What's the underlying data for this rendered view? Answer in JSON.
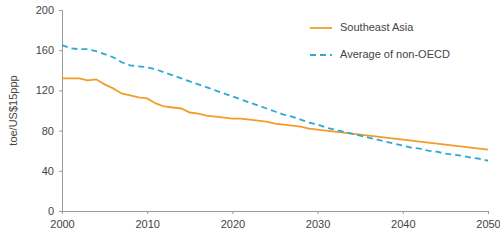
{
  "chart_data": {
    "type": "line",
    "y_label": "toe/US$15ppp",
    "x": [
      2000,
      2001,
      2002,
      2003,
      2004,
      2005,
      2006,
      2007,
      2008,
      2009,
      2010,
      2011,
      2012,
      2013,
      2014,
      2015,
      2016,
      2017,
      2018,
      2019,
      2020,
      2021,
      2022,
      2023,
      2024,
      2025,
      2026,
      2027,
      2028,
      2029,
      2030,
      2031,
      2032,
      2033,
      2034,
      2035,
      2036,
      2037,
      2038,
      2039,
      2040,
      2041,
      2042,
      2043,
      2044,
      2045,
      2046,
      2047,
      2048,
      2049,
      2050
    ],
    "series": [
      {
        "name": "Southeast Asia",
        "color": "#f39c2a",
        "line_style": "solid",
        "values": [
          132,
          132,
          132,
          130,
          131,
          126,
          122,
          117,
          115,
          113,
          112,
          107,
          104,
          103,
          102,
          98,
          97,
          95,
          94,
          93,
          92,
          92,
          91,
          90,
          89,
          87,
          86,
          85,
          84,
          82,
          81,
          80,
          79,
          78,
          77,
          76,
          75,
          74,
          73,
          72,
          71,
          70,
          69,
          68,
          67,
          66,
          65,
          64,
          63,
          62,
          61
        ]
      },
      {
        "name": "Average of non-OECD",
        "color": "#2fa8d5",
        "line_style": "dashed",
        "values": [
          165,
          162,
          161,
          161,
          159,
          156,
          153,
          148,
          145,
          144,
          143,
          141,
          138,
          135,
          132,
          129,
          126,
          123,
          120,
          117,
          114,
          111,
          108,
          105,
          102,
          99,
          96,
          94,
          91,
          88,
          86,
          83,
          81,
          79,
          77,
          75,
          73,
          71,
          69,
          67,
          65,
          63,
          62,
          60,
          59,
          57,
          56,
          55,
          53,
          52,
          50
        ]
      }
    ],
    "xlim": [
      2000,
      2050
    ],
    "xticks": [
      2000,
      2010,
      2020,
      2030,
      2040,
      2050
    ],
    "ylim": [
      0,
      200
    ],
    "yticks": [
      0,
      40,
      80,
      120,
      160,
      200
    ],
    "grid": false,
    "legend": "top-right"
  }
}
